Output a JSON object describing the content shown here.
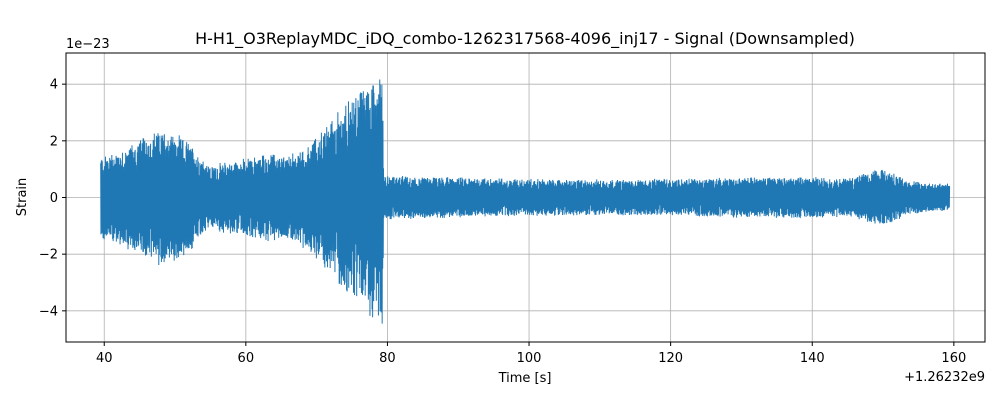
{
  "chart_data": {
    "type": "line",
    "title": "H-H1_O3ReplayMDC_iDQ_combo-1262317568-4096_inj17 - Signal (Downsampled)",
    "xlabel": "Time [s]",
    "ylabel": "Strain",
    "x_offset_label": "+1.26232e9",
    "y_scale_label": "1e−23",
    "xlim": [
      34.6,
      164.4
    ],
    "ylim": [
      -5.1,
      5.1
    ],
    "x_ticks": [
      40,
      60,
      80,
      100,
      120,
      140,
      160
    ],
    "x_tick_labels": [
      "40",
      "60",
      "80",
      "100",
      "120",
      "140",
      "160"
    ],
    "y_ticks": [
      -4,
      -2,
      0,
      2,
      4
    ],
    "y_tick_labels": [
      "−4",
      "−2",
      "0",
      "2",
      "4"
    ],
    "grid": true,
    "color": "#1f77b4",
    "series": [
      {
        "x_start": 39.5,
        "x_end": 159.4,
        "envelope": [
          [
            39.5,
            1.5
          ],
          [
            42,
            1.7
          ],
          [
            45,
            2.1
          ],
          [
            48,
            2.5
          ],
          [
            50,
            2.3
          ],
          [
            52,
            2.0
          ],
          [
            54,
            1.4
          ],
          [
            55,
            1.1
          ],
          [
            57,
            1.3
          ],
          [
            60,
            1.4
          ],
          [
            63,
            1.6
          ],
          [
            66,
            1.5
          ],
          [
            68,
            1.8
          ],
          [
            70,
            2.2
          ],
          [
            72,
            2.8
          ],
          [
            74,
            3.4
          ],
          [
            76,
            3.9
          ],
          [
            78,
            4.4
          ],
          [
            79.3,
            4.6
          ],
          [
            79.5,
            0.8
          ],
          [
            85,
            0.75
          ],
          [
            95,
            0.7
          ],
          [
            105,
            0.65
          ],
          [
            115,
            0.65
          ],
          [
            125,
            0.7
          ],
          [
            135,
            0.75
          ],
          [
            140,
            0.75
          ],
          [
            145,
            0.7
          ],
          [
            148,
            0.9
          ],
          [
            150,
            1.05
          ],
          [
            152,
            0.85
          ],
          [
            153,
            0.65
          ],
          [
            156,
            0.55
          ],
          [
            159.4,
            0.5
          ]
        ]
      }
    ]
  }
}
